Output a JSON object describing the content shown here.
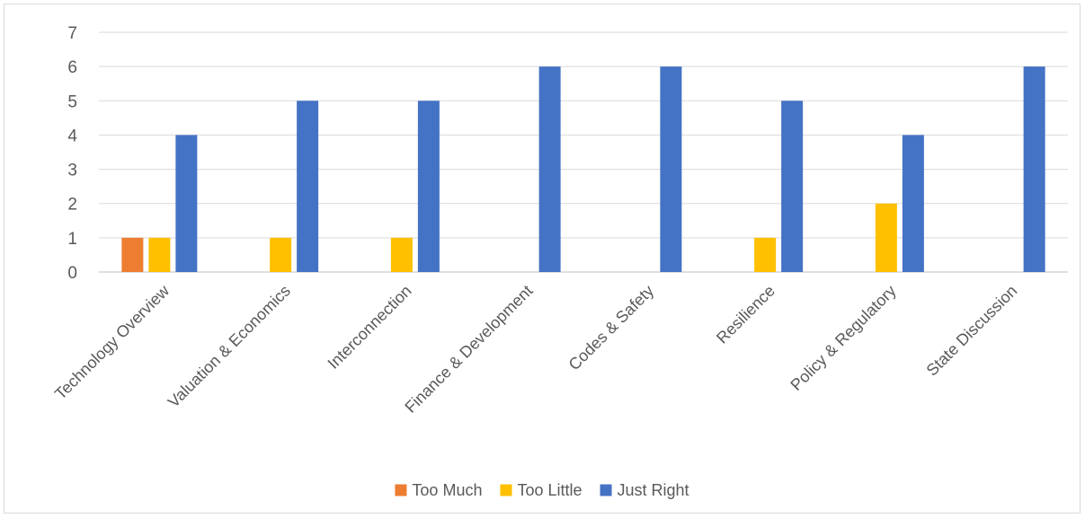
{
  "chart_data": {
    "type": "bar",
    "title": "",
    "xlabel": "",
    "ylabel": "",
    "ylim": [
      0,
      7
    ],
    "yticks": [
      0,
      1,
      2,
      3,
      4,
      5,
      6,
      7
    ],
    "grid": true,
    "legend_position": "bottom",
    "categories": [
      "Technology Overview",
      "Valuation & Economics",
      "Interconnection",
      "Finance & Development",
      "Codes & Safety",
      "Resilience",
      "Policy & Regulatory",
      "State Discussion"
    ],
    "series": [
      {
        "name": "Too Much",
        "color": "#ED7D31",
        "values": [
          1,
          0,
          0,
          0,
          0,
          0,
          0,
          0
        ]
      },
      {
        "name": "Too Little",
        "color": "#FFC000",
        "values": [
          1,
          1,
          1,
          0,
          0,
          1,
          2,
          0
        ]
      },
      {
        "name": "Just Right",
        "color": "#4472C4",
        "values": [
          4,
          5,
          5,
          6,
          6,
          5,
          4,
          6
        ]
      }
    ]
  }
}
